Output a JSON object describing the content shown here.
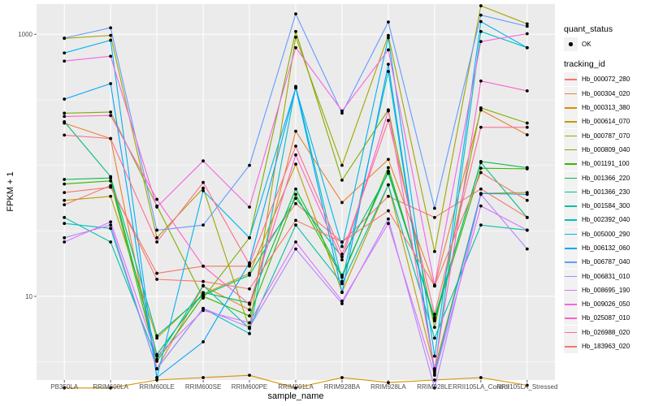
{
  "chart_data": {
    "type": "line",
    "title": "",
    "xlabel": "sample_name",
    "ylabel": "FPKM + 1",
    "yscale": "log10",
    "ylim": [
      2.3,
      1700
    ],
    "y_ticks": [
      10,
      1000
    ],
    "y_tick_labels": [
      "10",
      "1000"
    ],
    "grid": true,
    "legend_position": "right",
    "categories": [
      "PB350LA",
      "RRIM600LA",
      "RRIM600LE",
      "RRIM600SE",
      "RRIM600PE",
      "RRIM901LA",
      "RRIM928BA",
      "RRIM928LA",
      "RRIM928LE",
      "RRII105LA_Control",
      "RRII105LA_Stressed"
    ],
    "point_status_legend": {
      "title": "quant_status",
      "entries": [
        "OK"
      ]
    },
    "series_legend_title": "tracking_id",
    "series": [
      {
        "name": "Hb_000072_280",
        "color": "#F8766D",
        "values": [
          62,
          68,
          15,
          17,
          17,
          51,
          26,
          58,
          40,
          66,
          40
        ]
      },
      {
        "name": "Hb_000304_020",
        "color": "#EA8331",
        "values": [
          210,
          160,
          2.8,
          12,
          7.9,
          182,
          52,
          111,
          12,
          264,
          171
        ]
      },
      {
        "name": "Hb_000313_380",
        "color": "#D89000",
        "values": [
          2.0,
          2.0,
          2.3,
          2.4,
          2.5,
          2.0,
          2.4,
          2.2,
          2.3,
          2.4,
          2.1
        ]
      },
      {
        "name": "Hb_000614_070",
        "color": "#C09B00",
        "values": [
          54,
          58,
          4.8,
          10.4,
          15,
          102,
          10.8,
          71,
          2.8,
          61,
          62
        ]
      },
      {
        "name": "Hb_000787_070",
        "color": "#A3A500",
        "values": [
          930,
          980,
          28,
          67,
          5.7,
          950,
          100,
          980,
          22,
          1650,
          1200
        ]
      },
      {
        "name": "Hb_000809_040",
        "color": "#7CAE00",
        "values": [
          250,
          255,
          49,
          9.7,
          28,
          1050,
          77,
          265,
          5.8,
          274,
          210
        ]
      },
      {
        "name": "Hb_001191_100",
        "color": "#39B600",
        "values": [
          72,
          76,
          3.2,
          10,
          7.1,
          60,
          14,
          96,
          6.5,
          95,
          94
        ]
      },
      {
        "name": "Hb_001366_220",
        "color": "#00BB4E",
        "values": [
          78,
          80,
          3.6,
          10.7,
          8.9,
          66,
          14.5,
          90,
          6.7,
          107,
          96
        ]
      },
      {
        "name": "Hb_001366_230",
        "color": "#00BF7D",
        "values": [
          215,
          82,
          5.0,
          10.2,
          14.5,
          56,
          20,
          87,
          6.9,
          105,
          40
        ]
      },
      {
        "name": "Hb_001584_300",
        "color": "#00C1A3",
        "values": [
          40,
          26,
          3.3,
          12.1,
          5.7,
          35,
          12.5,
          71,
          4.8,
          35,
          32
        ]
      },
      {
        "name": "Hb_002392_040",
        "color": "#00BFC4",
        "values": [
          36,
          33,
          2.8,
          8.1,
          5.2,
          400,
          13,
          520,
          2.7,
          1050,
          790
        ]
      },
      {
        "name": "Hb_005000_290",
        "color": "#00B4EF",
        "values": [
          720,
          900,
          2.4,
          64,
          28,
          390,
          24,
          940,
          3.5,
          1250,
          790
        ]
      },
      {
        "name": "Hb_006132_060",
        "color": "#00A5FF",
        "values": [
          320,
          420,
          2.4,
          4.5,
          18,
          390,
          10.7,
          590,
          2.6,
          61,
          60
        ]
      },
      {
        "name": "Hb_006787_040",
        "color": "#619CFF",
        "values": [
          935,
          1120,
          32,
          35,
          100,
          1430,
          250,
          1240,
          47,
          1400,
          1150
        ]
      },
      {
        "name": "Hb_006831_010",
        "color": "#B385FF",
        "values": [
          28,
          35,
          2.8,
          8.1,
          5.8,
          23,
          8.8,
          39,
          2.0,
          60,
          23
        ]
      },
      {
        "name": "Hb_008695_190",
        "color": "#DB72FB",
        "values": [
          26,
          37,
          3.5,
          7.8,
          6.3,
          26,
          9.2,
          36,
          2.5,
          49,
          32
        ]
      },
      {
        "name": "Hb_009026_050",
        "color": "#F564E3",
        "values": [
          624,
          680,
          48,
          108,
          48,
          790,
          260,
          760,
          12.2,
          880,
          1010
        ]
      },
      {
        "name": "Hb_025087_010",
        "color": "#FF61C9",
        "values": [
          236,
          240,
          55,
          17,
          8.7,
          120,
          19,
          260,
          2.8,
          440,
          370
        ]
      },
      {
        "name": "Hb_026988_020",
        "color": "#FF6C91",
        "values": [
          170,
          160,
          26,
          74,
          17.5,
          140,
          21,
          220,
          7.3,
          195,
          195
        ]
      },
      {
        "name": "Hb_183963_020",
        "color": "#F8766D",
        "values": [
          50,
          70,
          13.5,
          13,
          11.4,
          38,
          26,
          45,
          12,
          88,
          54
        ]
      }
    ]
  }
}
